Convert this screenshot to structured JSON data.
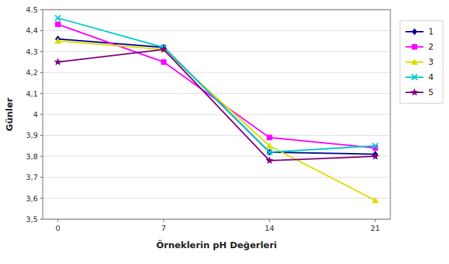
{
  "chart_data": {
    "type": "line",
    "xlabel": "Örneklerin pH Değerleri",
    "ylabel": "Günler",
    "x": [
      0,
      7,
      14,
      21
    ],
    "series": [
      {
        "name": "1",
        "color": "#00008B",
        "marker": "diamond",
        "values": [
          4.36,
          4.32,
          3.82,
          3.81
        ]
      },
      {
        "name": "2",
        "color": "#FF00FF",
        "marker": "square",
        "values": [
          4.43,
          4.25,
          3.89,
          3.84
        ]
      },
      {
        "name": "3",
        "color": "#DDDD00",
        "marker": "triangle",
        "values": [
          4.35,
          4.31,
          3.85,
          3.59
        ]
      },
      {
        "name": "4",
        "color": "#00CCCC",
        "marker": "x",
        "values": [
          4.46,
          4.32,
          3.82,
          3.85
        ]
      },
      {
        "name": "5",
        "color": "#800080",
        "marker": "star",
        "values": [
          4.25,
          4.31,
          3.78,
          3.8
        ]
      }
    ],
    "xlim": [
      -1,
      22
    ],
    "xticks": [
      0,
      7,
      14,
      21
    ],
    "ylim": [
      3.5,
      4.5
    ],
    "yticks": [
      {
        "value": 3.5,
        "label": "3,5"
      },
      {
        "value": 3.6,
        "label": "3,6"
      },
      {
        "value": 3.7,
        "label": "3,7"
      },
      {
        "value": 3.8,
        "label": "3,8"
      },
      {
        "value": 3.9,
        "label": "3,9"
      },
      4,
      {
        "value": 4.1,
        "label": "4,1"
      },
      {
        "value": 4.2,
        "label": "4,2"
      },
      {
        "value": 4.3,
        "label": "4,3"
      },
      {
        "value": 4.4,
        "label": "4,4"
      },
      4.5
    ],
    "grid": true,
    "legend": "right"
  }
}
